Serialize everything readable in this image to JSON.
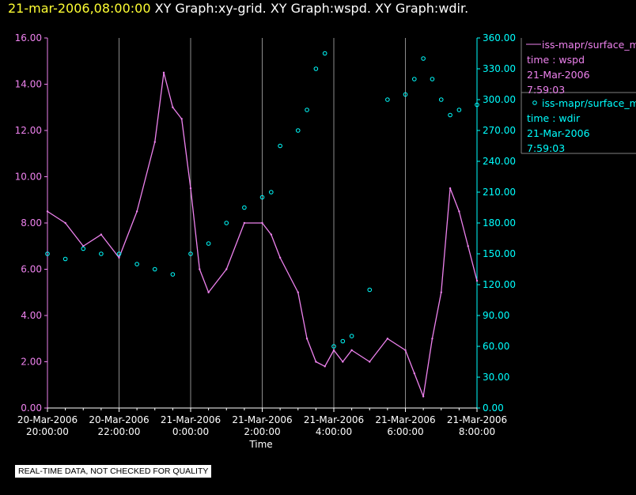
{
  "header": {
    "timestamp": "21-mar-2006,08:00:00",
    "title": " XY Graph:xy-grid.  XY Graph:wspd.  XY Graph:wdir."
  },
  "legend": [
    {
      "marker": "line",
      "series": "iss-mapr/surface_m",
      "field": "time : wspd",
      "date": "21-Mar-2006",
      "time": "7:59:03",
      "color": "#ee82ee"
    },
    {
      "marker": "circle",
      "series": "iss-mapr/surface_m",
      "field": "time : wdir",
      "date": "21-Mar-2006",
      "time": "7:59:03",
      "color": "#00ffff"
    }
  ],
  "notice": "REAL-TIME DATA, NOT CHECKED FOR QUALITY",
  "chart_data": {
    "type": "line",
    "xlabel": "Time",
    "x_tick_dates": [
      "20-Mar-2006",
      "20-Mar-2006",
      "21-Mar-2006",
      "21-Mar-2006",
      "21-Mar-2006",
      "21-Mar-2006",
      "21-Mar-2006"
    ],
    "x_tick_times": [
      "20:00:00",
      "22:00:00",
      "0:00:00",
      "2:00:00",
      "4:00:00",
      "6:00:00",
      "8:00:00"
    ],
    "x_ticks_hours": [
      0,
      2,
      4,
      6,
      8,
      10,
      12
    ],
    "xlim_hours": [
      0,
      12
    ],
    "y_left": {
      "ylim": [
        0,
        16
      ],
      "ticks": [
        "0.00",
        "2.00",
        "4.00",
        "6.00",
        "8.00",
        "10.00",
        "12.00",
        "14.00",
        "16.00"
      ],
      "color": "#ee82ee"
    },
    "y_right": {
      "ylim": [
        0,
        360
      ],
      "ticks": [
        "0.00",
        "30.00",
        "60.00",
        "90.00",
        "120.00",
        "150.00",
        "180.00",
        "210.00",
        "240.00",
        "270.00",
        "300.00",
        "330.00",
        "360.00"
      ],
      "color": "#00ffff"
    },
    "grid": "vertical",
    "series": [
      {
        "name": "time : wspd",
        "axis": "left",
        "style": "line",
        "color": "#ee82ee",
        "x": [
          0,
          0.5,
          1,
          1.5,
          2,
          2.5,
          3,
          3.25,
          3.5,
          3.75,
          4,
          4.25,
          4.5,
          5,
          5.5,
          6,
          6.25,
          6.5,
          7,
          7.25,
          7.5,
          7.75,
          8,
          8.25,
          8.5,
          9,
          9.5,
          10,
          10.25,
          10.5,
          10.75,
          11,
          11.25,
          11.5,
          11.75,
          12
        ],
        "values": [
          8.5,
          8.0,
          7.0,
          7.5,
          6.5,
          8.5,
          11.5,
          14.5,
          13.0,
          12.5,
          9.5,
          6.0,
          5.0,
          6.0,
          8.0,
          8.0,
          7.5,
          6.5,
          5.0,
          3.0,
          2.0,
          1.8,
          2.5,
          2.0,
          2.5,
          2.0,
          3.0,
          2.5,
          1.5,
          0.5,
          3.0,
          5.0,
          9.5,
          8.5,
          7.0,
          5.5
        ]
      },
      {
        "name": "time : wdir",
        "axis": "right",
        "style": "markers",
        "color": "#00ffff",
        "x": [
          0,
          0.5,
          1,
          1.5,
          2,
          2.5,
          3,
          3.5,
          4,
          4.5,
          5,
          5.5,
          6,
          6.25,
          6.5,
          7,
          7.25,
          7.5,
          7.75,
          8,
          8.25,
          8.5,
          9,
          9.5,
          10,
          10.25,
          10.5,
          10.75,
          11,
          11.25,
          11.5,
          12
        ],
        "values": [
          150,
          145,
          155,
          150,
          150,
          140,
          135,
          130,
          150,
          160,
          180,
          195,
          205,
          210,
          255,
          270,
          290,
          330,
          345,
          60,
          65,
          70,
          115,
          300,
          305,
          320,
          340,
          320,
          300,
          285,
          290,
          295
        ]
      }
    ]
  }
}
